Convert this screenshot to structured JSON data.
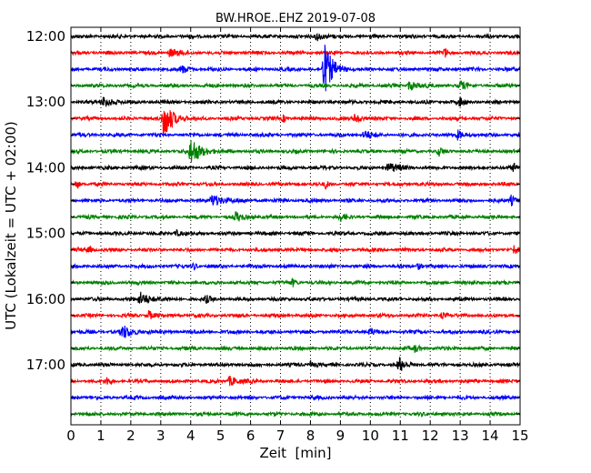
{
  "chart_data": {
    "type": "line",
    "title": "BW.HROE..EHZ 2019-07-08",
    "xlabel": "Zeit  [min]",
    "ylabel": "UTC (Lokalzeit = UTC + 02:00)",
    "xlim": [
      0,
      15
    ],
    "x_ticks": [
      0,
      1,
      2,
      3,
      4,
      5,
      6,
      7,
      8,
      9,
      10,
      11,
      12,
      13,
      14,
      15
    ],
    "x_tick_labels": [
      "0",
      "1",
      "2",
      "3",
      "4",
      "5",
      "6",
      "7",
      "8",
      "9",
      "10",
      "11",
      "12",
      "13",
      "14",
      "15"
    ],
    "y_tick_labels": [
      "12:00",
      "13:00",
      "14:00",
      "15:00",
      "16:00",
      "17:00"
    ],
    "y_tick_trace_index": [
      0,
      4,
      8,
      12,
      16,
      20
    ],
    "grid": "vertical dotted",
    "colors": {
      "black": "#000000",
      "red": "#ff0000",
      "blue": "#0000ff",
      "green": "#008000"
    },
    "traces": [
      {
        "start": "12:00",
        "color": "#000000",
        "events": [
          {
            "t": 8.2,
            "amp": 0.3,
            "dur": 0.6
          }
        ]
      },
      {
        "start": "12:15",
        "color": "#ff0000",
        "events": [
          {
            "t": 3.3,
            "amp": 0.25,
            "dur": 0.8
          },
          {
            "t": 12.5,
            "amp": 0.3,
            "dur": 0.2
          }
        ]
      },
      {
        "start": "12:30",
        "color": "#0000ff",
        "events": [
          {
            "t": 8.45,
            "amp": 1.6,
            "dur": 0.8
          },
          {
            "t": 3.7,
            "amp": 0.22,
            "dur": 0.7
          }
        ]
      },
      {
        "start": "12:45",
        "color": "#008000",
        "events": [
          {
            "t": 11.3,
            "amp": 0.3,
            "dur": 0.8
          },
          {
            "t": 13.0,
            "amp": 0.28,
            "dur": 0.5
          }
        ]
      },
      {
        "start": "13:00",
        "color": "#000000",
        "events": [
          {
            "t": 1.1,
            "amp": 0.4,
            "dur": 0.7
          },
          {
            "t": 13.0,
            "amp": 0.28,
            "dur": 0.4
          }
        ]
      },
      {
        "start": "13:15",
        "color": "#ff0000",
        "events": [
          {
            "t": 3.1,
            "amp": 1.25,
            "dur": 0.8
          },
          {
            "t": 9.5,
            "amp": 0.35,
            "dur": 0.5
          },
          {
            "t": 7.1,
            "amp": 0.22,
            "dur": 0.3
          }
        ]
      },
      {
        "start": "13:30",
        "color": "#0000ff",
        "events": [
          {
            "t": 9.8,
            "amp": 0.3,
            "dur": 0.6
          },
          {
            "t": 12.9,
            "amp": 0.28,
            "dur": 0.6
          }
        ]
      },
      {
        "start": "13:45",
        "color": "#008000",
        "events": [
          {
            "t": 4.0,
            "amp": 0.9,
            "dur": 0.9
          },
          {
            "t": 12.3,
            "amp": 0.25,
            "dur": 0.3
          }
        ]
      },
      {
        "start": "14:00",
        "color": "#000000",
        "events": [
          {
            "t": 10.6,
            "amp": 0.3,
            "dur": 0.9
          },
          {
            "t": 14.8,
            "amp": 0.25,
            "dur": 0.3
          }
        ]
      },
      {
        "start": "14:15",
        "color": "#ff0000",
        "events": [
          {
            "t": 0.2,
            "amp": 0.35,
            "dur": 0.2
          },
          {
            "t": 8.5,
            "amp": 0.22,
            "dur": 0.3
          }
        ]
      },
      {
        "start": "14:30",
        "color": "#0000ff",
        "events": [
          {
            "t": 4.7,
            "amp": 0.35,
            "dur": 1.2
          },
          {
            "t": 14.7,
            "amp": 0.3,
            "dur": 0.5
          }
        ]
      },
      {
        "start": "14:45",
        "color": "#008000",
        "events": [
          {
            "t": 5.5,
            "amp": 0.25,
            "dur": 0.8
          },
          {
            "t": 9.0,
            "amp": 0.22,
            "dur": 0.4
          }
        ]
      },
      {
        "start": "15:00",
        "color": "#000000",
        "events": [
          {
            "t": 3.5,
            "amp": 0.22,
            "dur": 0.4
          }
        ]
      },
      {
        "start": "15:15",
        "color": "#ff0000",
        "events": [
          {
            "t": 0.6,
            "amp": 0.22,
            "dur": 0.3
          },
          {
            "t": 14.8,
            "amp": 0.25,
            "dur": 0.3
          }
        ]
      },
      {
        "start": "15:30",
        "color": "#0000ff",
        "events": [
          {
            "t": 4.1,
            "amp": 0.22,
            "dur": 0.3
          },
          {
            "t": 11.6,
            "amp": 0.22,
            "dur": 0.3
          }
        ]
      },
      {
        "start": "15:45",
        "color": "#008000",
        "events": [
          {
            "t": 7.4,
            "amp": 0.22,
            "dur": 0.3
          }
        ]
      },
      {
        "start": "16:00",
        "color": "#000000",
        "events": [
          {
            "t": 2.3,
            "amp": 0.4,
            "dur": 1.0
          },
          {
            "t": 4.5,
            "amp": 0.22,
            "dur": 0.4
          }
        ]
      },
      {
        "start": "16:15",
        "color": "#ff0000",
        "events": [
          {
            "t": 2.6,
            "amp": 0.3,
            "dur": 0.4
          },
          {
            "t": 12.4,
            "amp": 0.22,
            "dur": 0.3
          }
        ]
      },
      {
        "start": "16:30",
        "color": "#0000ff",
        "events": [
          {
            "t": 1.7,
            "amp": 0.4,
            "dur": 1.0
          },
          {
            "t": 10.0,
            "amp": 0.22,
            "dur": 0.3
          }
        ]
      },
      {
        "start": "16:45",
        "color": "#008000",
        "events": [
          {
            "t": 11.5,
            "amp": 0.22,
            "dur": 0.4
          }
        ]
      },
      {
        "start": "17:00",
        "color": "#000000",
        "events": [
          {
            "t": 10.95,
            "amp": 0.5,
            "dur": 0.5
          },
          {
            "t": 8.0,
            "amp": 0.22,
            "dur": 0.4
          }
        ]
      },
      {
        "start": "17:15",
        "color": "#ff0000",
        "events": [
          {
            "t": 5.3,
            "amp": 0.3,
            "dur": 0.8
          },
          {
            "t": 1.2,
            "amp": 0.22,
            "dur": 0.3
          }
        ]
      },
      {
        "start": "17:30",
        "color": "#0000ff",
        "events": []
      },
      {
        "start": "17:45",
        "color": "#008000",
        "events": []
      }
    ]
  }
}
